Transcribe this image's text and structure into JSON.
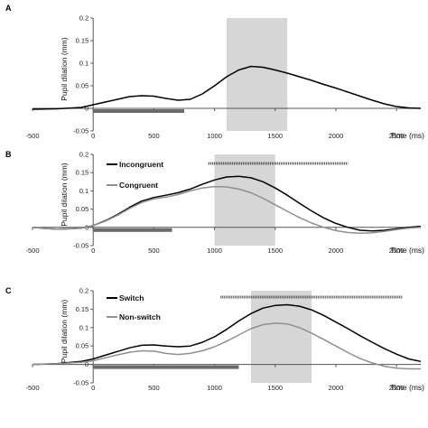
{
  "figure": {
    "panels": [
      {
        "letter": "A",
        "legend": []
      },
      {
        "letter": "B",
        "legend": [
          "Incongruent",
          "Congruent"
        ]
      },
      {
        "letter": "C",
        "legend": [
          "Switch",
          "Non-switch"
        ]
      }
    ]
  },
  "chart_data": [
    {
      "panel": "A",
      "type": "line",
      "title": "",
      "xlabel": "Time (ms)",
      "ylabel": "Pupil dilation (mm)",
      "xlim": [
        -500,
        2700
      ],
      "ylim": [
        -0.05,
        0.2
      ],
      "xticks": [
        -500,
        0,
        500,
        1000,
        1500,
        2000,
        2500
      ],
      "yticks": [
        -0.05,
        0,
        0.05,
        0.1,
        0.15,
        0.2
      ],
      "ytick_labels": [
        "-0.05",
        "0",
        "0.05",
        "0.1",
        "0.15",
        "0.2"
      ],
      "shaded_window": [
        1100,
        1600
      ],
      "stimulus_bar": [
        0,
        750
      ],
      "significance_bar": null,
      "legend_position": "none",
      "series": [
        {
          "color": "#000000",
          "x": [
            -500,
            -300,
            -100,
            0,
            100,
            200,
            300,
            400,
            500,
            600,
            700,
            800,
            900,
            1000,
            1100,
            1200,
            1300,
            1400,
            1500,
            1600,
            1700,
            1800,
            1900,
            2000,
            2100,
            2200,
            2300,
            2400,
            2500,
            2600,
            2700
          ],
          "y": [
            -0.002,
            -0.001,
            0.002,
            0.008,
            0.014,
            0.02,
            0.026,
            0.028,
            0.027,
            0.022,
            0.018,
            0.02,
            0.032,
            0.05,
            0.07,
            0.085,
            0.093,
            0.091,
            0.085,
            0.078,
            0.07,
            0.062,
            0.053,
            0.045,
            0.036,
            0.027,
            0.018,
            0.01,
            0.004,
            0.001,
            0.0
          ]
        }
      ]
    },
    {
      "panel": "B",
      "type": "line",
      "title": "",
      "xlabel": "Time (ms)",
      "ylabel": "Pupil dilation (mm)",
      "xlim": [
        -500,
        2700
      ],
      "ylim": [
        -0.05,
        0.2
      ],
      "xticks": [
        -500,
        0,
        500,
        1000,
        1500,
        2000,
        2500
      ],
      "yticks": [
        -0.05,
        0,
        0.05,
        0.1,
        0.15,
        0.2
      ],
      "ytick_labels": [
        "-0.05",
        "0",
        "0.05",
        "0.1",
        "0.15",
        "0.2"
      ],
      "shaded_window": [
        1000,
        1500
      ],
      "stimulus_bar": [
        0,
        650
      ],
      "significance_bar": [
        950,
        2100
      ],
      "legend_position": "top-left",
      "series": [
        {
          "name": "Incongruent",
          "color": "#000000",
          "x": [
            -500,
            -400,
            -300,
            -200,
            -100,
            0,
            100,
            200,
            300,
            400,
            500,
            600,
            700,
            800,
            900,
            1000,
            1100,
            1200,
            1300,
            1400,
            1500,
            1600,
            1700,
            1800,
            1900,
            2000,
            2100,
            2200,
            2300,
            2400,
            2500,
            2600,
            2700
          ],
          "y": [
            0.0,
            -0.003,
            -0.005,
            -0.004,
            -0.002,
            0.005,
            0.018,
            0.035,
            0.055,
            0.072,
            0.082,
            0.088,
            0.095,
            0.105,
            0.118,
            0.13,
            0.138,
            0.14,
            0.136,
            0.125,
            0.108,
            0.088,
            0.066,
            0.045,
            0.026,
            0.011,
            0.0,
            -0.008,
            -0.01,
            -0.008,
            -0.004,
            0.0,
            0.003
          ]
        },
        {
          "name": "Congruent",
          "color": "#909090",
          "x": [
            -500,
            -400,
            -300,
            -200,
            -100,
            0,
            100,
            200,
            300,
            400,
            500,
            600,
            700,
            800,
            900,
            1000,
            1100,
            1200,
            1300,
            1400,
            1500,
            1600,
            1700,
            1800,
            1900,
            2000,
            2100,
            2200,
            2300,
            2400,
            2500,
            2600,
            2700
          ],
          "y": [
            0.0,
            -0.003,
            -0.005,
            -0.004,
            -0.002,
            0.005,
            0.017,
            0.033,
            0.052,
            0.068,
            0.078,
            0.083,
            0.09,
            0.1,
            0.108,
            0.112,
            0.111,
            0.105,
            0.095,
            0.08,
            0.062,
            0.044,
            0.027,
            0.012,
            0.0,
            -0.009,
            -0.014,
            -0.016,
            -0.015,
            -0.011,
            -0.006,
            -0.002,
            0.0
          ]
        }
      ]
    },
    {
      "panel": "C",
      "type": "line",
      "title": "",
      "xlabel": "Time (ms)",
      "ylabel": "Pupil dilation (mm)",
      "xlim": [
        -500,
        2700
      ],
      "ylim": [
        -0.05,
        0.2
      ],
      "xticks": [
        -500,
        0,
        500,
        1000,
        1500,
        2000,
        2500
      ],
      "yticks": [
        -0.05,
        0,
        0.05,
        0.1,
        0.15,
        0.2
      ],
      "ytick_labels": [
        "-0.05",
        "0",
        "0.05",
        "0.1",
        "0.15",
        "0.2"
      ],
      "shaded_window": [
        1300,
        1800
      ],
      "stimulus_bar": [
        0,
        1200
      ],
      "significance_bar": [
        1050,
        2550
      ],
      "legend_position": "top-left",
      "series": [
        {
          "name": "Switch",
          "color": "#000000",
          "x": [
            -500,
            -300,
            -100,
            0,
            100,
            200,
            300,
            400,
            500,
            600,
            700,
            800,
            900,
            1000,
            1100,
            1200,
            1300,
            1400,
            1500,
            1600,
            1700,
            1800,
            1900,
            2000,
            2100,
            2200,
            2300,
            2400,
            2500,
            2600,
            2700
          ],
          "y": [
            0.0,
            0.002,
            0.008,
            0.015,
            0.025,
            0.035,
            0.045,
            0.052,
            0.053,
            0.05,
            0.048,
            0.05,
            0.06,
            0.075,
            0.095,
            0.118,
            0.138,
            0.153,
            0.16,
            0.162,
            0.158,
            0.148,
            0.133,
            0.115,
            0.097,
            0.078,
            0.06,
            0.043,
            0.028,
            0.015,
            0.008
          ]
        },
        {
          "name": "Non-switch",
          "color": "#909090",
          "x": [
            -500,
            -300,
            -100,
            0,
            100,
            200,
            300,
            400,
            500,
            600,
            700,
            800,
            900,
            1000,
            1100,
            1200,
            1300,
            1400,
            1500,
            1600,
            1700,
            1800,
            1900,
            2000,
            2100,
            2200,
            2300,
            2400,
            2500,
            2600,
            2700
          ],
          "y": [
            0.0,
            0.002,
            0.006,
            0.01,
            0.018,
            0.026,
            0.033,
            0.037,
            0.036,
            0.03,
            0.027,
            0.03,
            0.037,
            0.048,
            0.063,
            0.08,
            0.097,
            0.108,
            0.112,
            0.11,
            0.1,
            0.085,
            0.068,
            0.05,
            0.032,
            0.016,
            0.004,
            -0.005,
            -0.01,
            -0.012,
            -0.012
          ]
        }
      ]
    }
  ]
}
